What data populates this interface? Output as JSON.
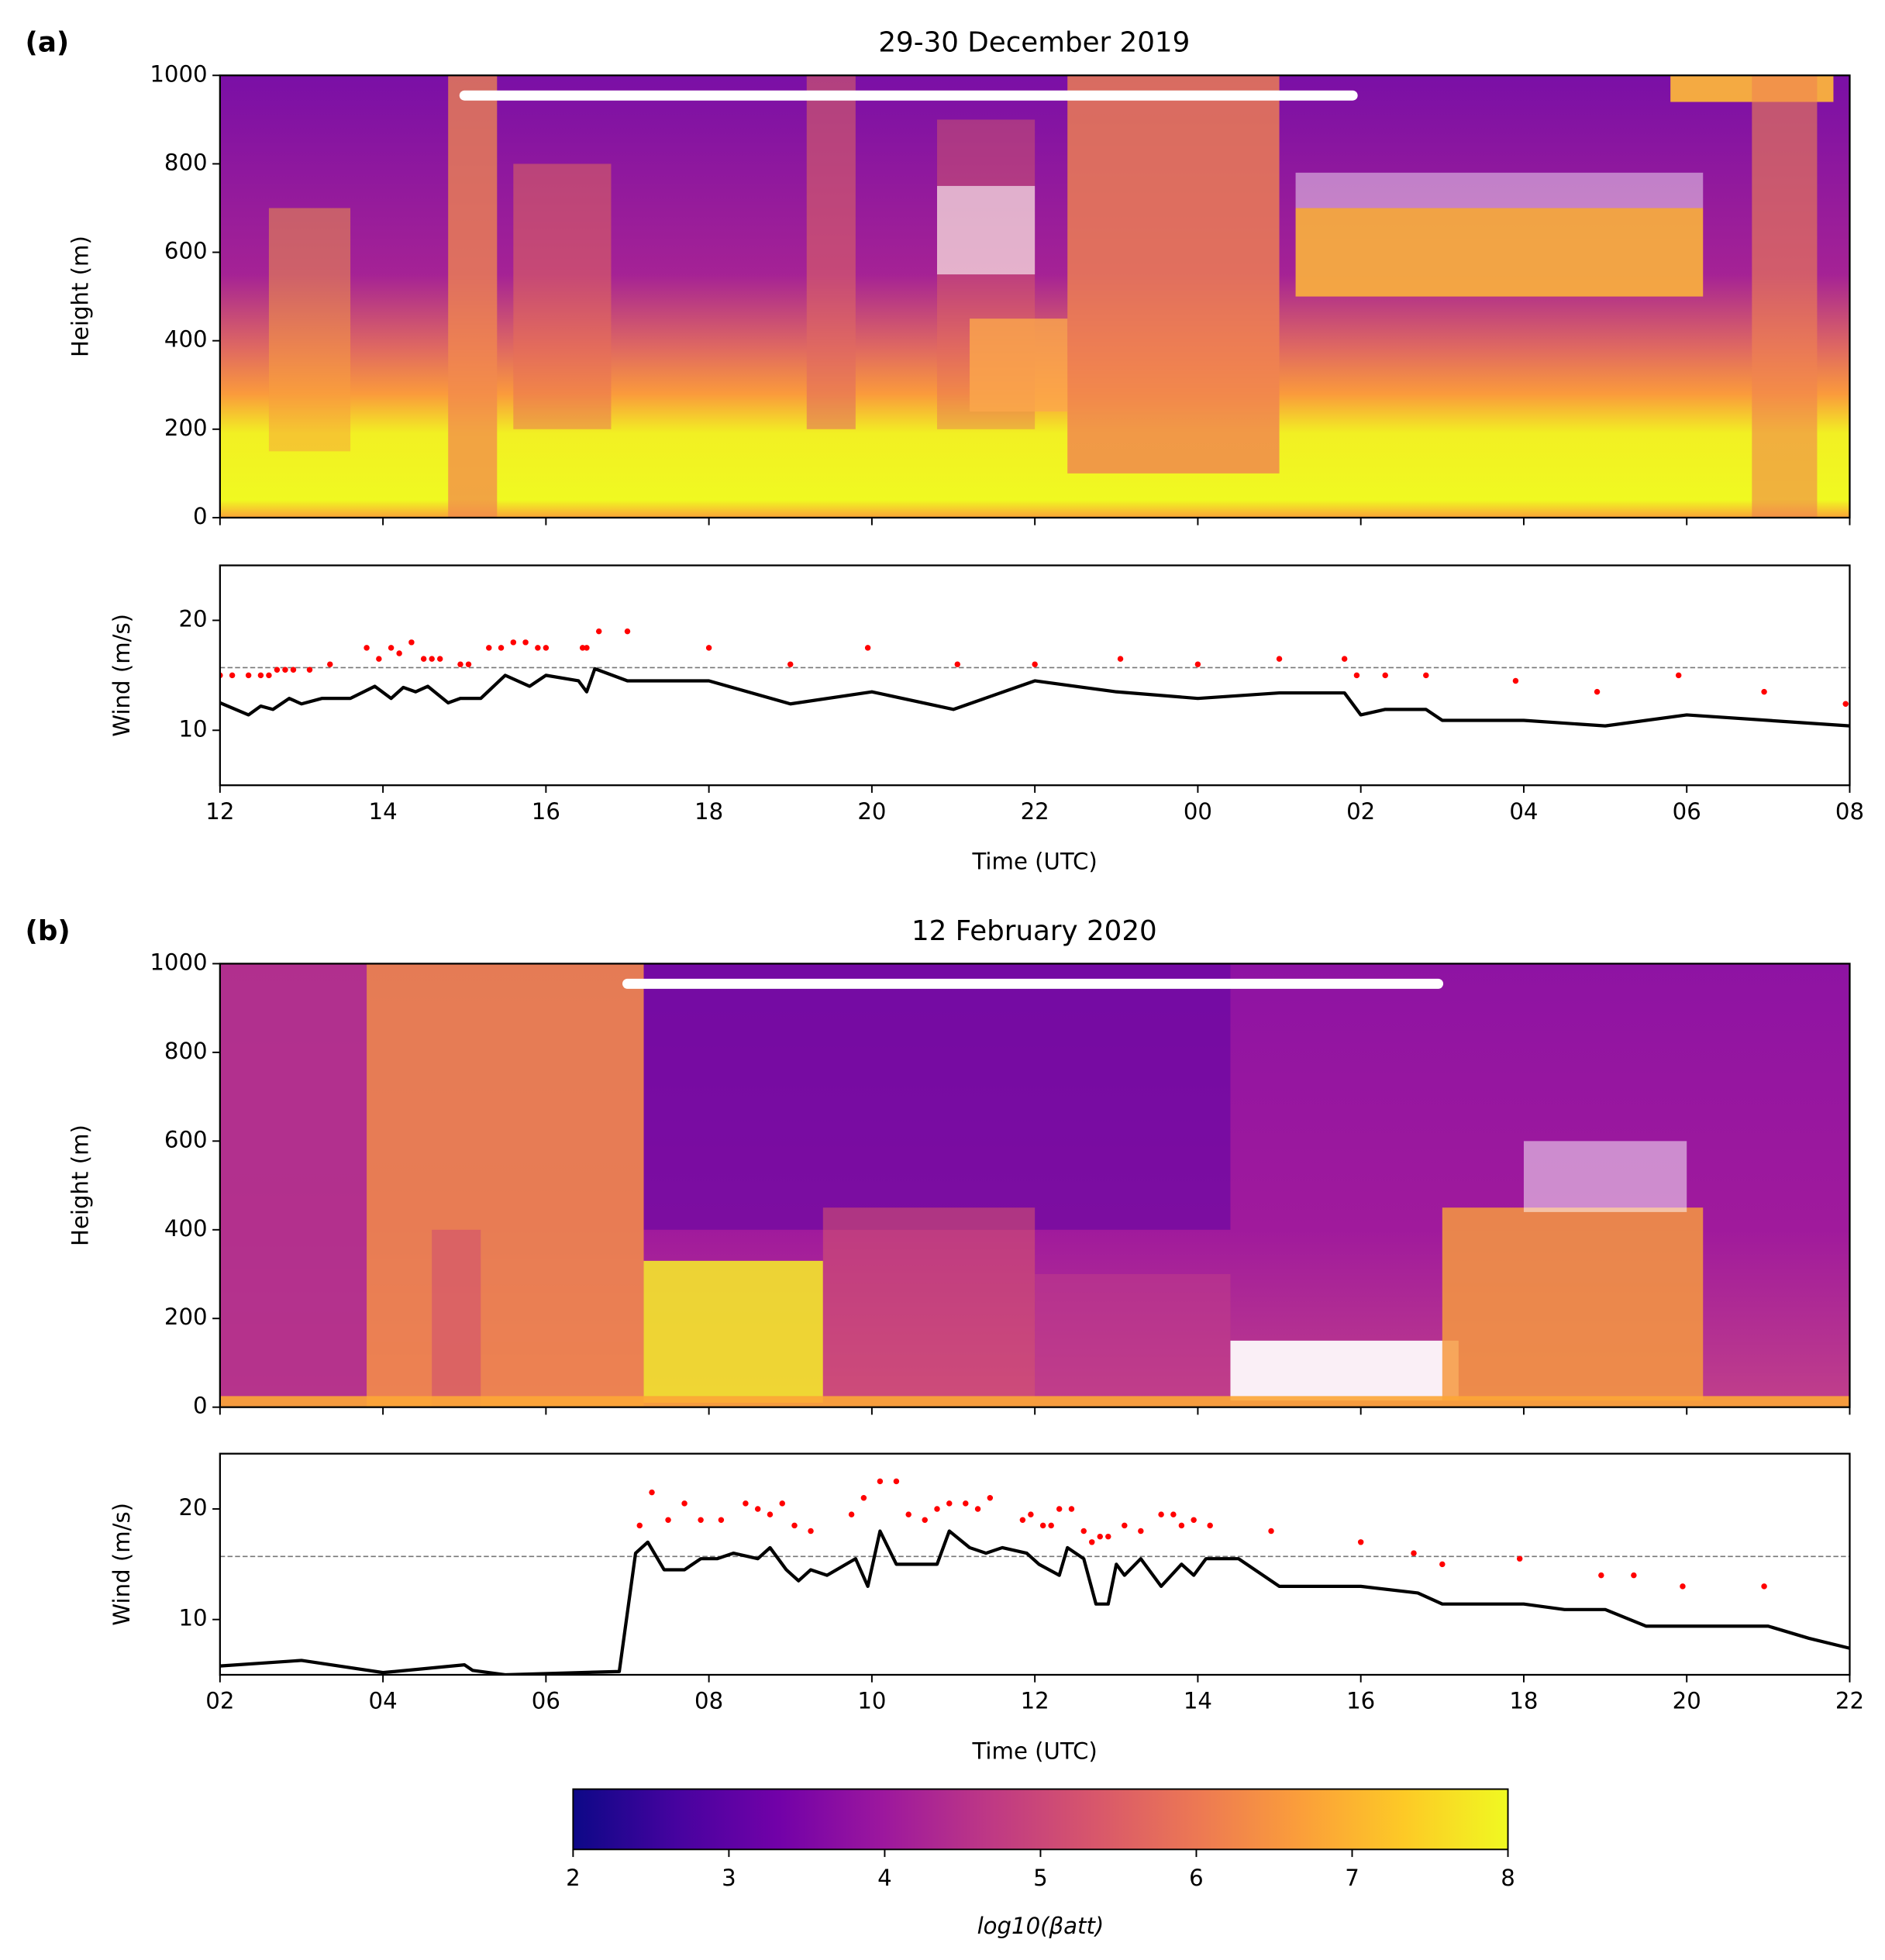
{
  "chart_data": [
    {
      "type": "heatmap",
      "panel": "(a)",
      "title": "29-30 December 2019",
      "ylabel": "Height (m)",
      "ylim": [
        0,
        1000
      ],
      "yticks": [
        0,
        200,
        400,
        600,
        800,
        1000
      ],
      "span": [
        15.0,
        25.9
      ],
      "colormap": "plasma"
    },
    {
      "type": "line",
      "xlabel": "Time (UTC)",
      "ylabel": "Wind (m/s)",
      "xlim": [
        12,
        32
      ],
      "xticks": [
        12,
        14,
        16,
        18,
        20,
        22,
        {
          "value": 24,
          "label": "00"
        },
        {
          "value": 26,
          "label": "02"
        },
        {
          "value": 28,
          "label": "04"
        },
        {
          "value": 30,
          "label": "06"
        },
        {
          "value": 32,
          "label": "08"
        }
      ],
      "ylim": [
        5,
        25
      ],
      "yticks": [
        10,
        20
      ],
      "reference_line": 15.7,
      "series": [
        {
          "style": "line",
          "color": "#000000",
          "x": [
            12.0,
            12.35,
            12.5,
            12.65,
            12.85,
            13.0,
            13.25,
            13.6,
            13.9,
            14.1,
            14.25,
            14.4,
            14.55,
            14.8,
            14.95,
            15.2,
            15.5,
            15.8,
            16.0,
            16.4,
            16.5,
            16.6,
            17.0,
            18.0,
            19.0,
            20.0,
            21.0,
            22.0,
            23.0,
            24.0,
            25.0,
            25.8,
            26.0,
            26.3,
            26.8,
            27.0,
            28.0,
            29.0,
            30.0,
            32.0
          ],
          "values": [
            12.5,
            11.4,
            12.2,
            11.9,
            12.9,
            12.4,
            12.9,
            12.9,
            14.0,
            12.9,
            13.9,
            13.5,
            14.0,
            12.5,
            12.9,
            12.9,
            15.0,
            14.0,
            15.0,
            14.5,
            13.5,
            15.6,
            14.5,
            14.5,
            12.4,
            13.5,
            11.9,
            14.5,
            13.5,
            12.9,
            13.4,
            13.4,
            11.4,
            11.9,
            11.9,
            10.9,
            10.9,
            10.4,
            11.4,
            10.4
          ]
        },
        {
          "style": "scatter",
          "color": "#ff0000",
          "x": [
            12.0,
            12.15,
            12.35,
            12.5,
            12.6,
            12.7,
            12.8,
            12.9,
            13.1,
            13.35,
            13.8,
            13.95,
            14.1,
            14.2,
            14.35,
            14.5,
            14.6,
            14.7,
            14.95,
            15.05,
            15.3,
            15.45,
            15.6,
            15.75,
            15.9,
            16.0,
            16.45,
            16.5,
            16.65,
            17.0,
            18.0,
            19.0,
            19.95,
            21.05,
            22.0,
            23.05,
            24.0,
            25.0,
            25.8,
            25.95,
            26.3,
            26.8,
            27.9,
            28.9,
            29.9,
            30.95,
            31.95
          ],
          "values": [
            15.0,
            15.0,
            15.0,
            15.0,
            15.0,
            15.5,
            15.5,
            15.5,
            15.5,
            16.0,
            17.5,
            16.5,
            17.5,
            17.0,
            18.0,
            16.5,
            16.5,
            16.5,
            16.0,
            16.0,
            17.5,
            17.5,
            18.0,
            18.0,
            17.5,
            17.5,
            17.5,
            17.5,
            19.0,
            19.0,
            17.5,
            16.0,
            17.5,
            16.0,
            16.0,
            16.5,
            16.0,
            16.5,
            16.5,
            15.0,
            15.0,
            15.0,
            14.5,
            13.5,
            15.0,
            13.5,
            12.4
          ]
        }
      ]
    },
    {
      "type": "heatmap",
      "panel": "(b)",
      "title": "12 February 2020",
      "ylabel": "Height (m)",
      "ylim": [
        0,
        1000
      ],
      "yticks": [
        0,
        200,
        400,
        600,
        800,
        1000
      ],
      "span": [
        7.0,
        16.95
      ],
      "colormap": "plasma"
    },
    {
      "type": "line",
      "xlabel": "Time (UTC)",
      "ylabel": "Wind (m/s)",
      "xlim": [
        2,
        22
      ],
      "xticks": [
        {
          "value": 2,
          "label": "02"
        },
        {
          "value": 4,
          "label": "04"
        },
        {
          "value": 6,
          "label": "06"
        },
        {
          "value": 8,
          "label": "08"
        },
        10,
        12,
        14,
        16,
        18,
        20,
        22
      ],
      "ylim": [
        5,
        25
      ],
      "yticks": [
        10,
        20
      ],
      "reference_line": 15.7,
      "series": [
        {
          "style": "line",
          "color": "#000000",
          "x": [
            2,
            3,
            4,
            5,
            5.1,
            5.5,
            6.9,
            7.1,
            7.25,
            7.45,
            7.7,
            7.9,
            8.1,
            8.3,
            8.6,
            8.75,
            8.95,
            9.1,
            9.25,
            9.45,
            9.8,
            9.95,
            10.1,
            10.3,
            10.8,
            10.95,
            11.2,
            11.4,
            11.6,
            11.9,
            12.05,
            12.3,
            12.4,
            12.6,
            12.75,
            12.9,
            13.0,
            13.1,
            13.3,
            13.55,
            13.8,
            13.95,
            14.1,
            14.5,
            15.0,
            16.0,
            16.7,
            17.0,
            18.0,
            18.5,
            19.0,
            19.5,
            21.0,
            21.5,
            22
          ],
          "values": [
            5.8,
            6.3,
            5.2,
            5.9,
            5.4,
            5.0,
            5.3,
            16.0,
            17.0,
            14.5,
            14.5,
            15.5,
            15.5,
            16.0,
            15.5,
            16.5,
            14.5,
            13.5,
            14.5,
            14.0,
            15.5,
            13.0,
            18.0,
            15.0,
            15.0,
            18.0,
            16.5,
            16.0,
            16.5,
            16.0,
            15.0,
            14.0,
            16.5,
            15.5,
            11.4,
            11.4,
            15.0,
            14.0,
            15.5,
            13.0,
            15.0,
            14.0,
            15.5,
            15.5,
            13.0,
            13.0,
            12.4,
            11.4,
            11.4,
            10.9,
            10.9,
            9.4,
            9.4,
            8.3,
            7.4
          ]
        },
        {
          "style": "scatter",
          "color": "#ff0000",
          "x": [
            7.15,
            7.3,
            7.5,
            7.7,
            7.9,
            8.15,
            8.45,
            8.6,
            8.75,
            8.9,
            9.05,
            9.25,
            9.75,
            9.9,
            10.1,
            10.3,
            10.45,
            10.65,
            10.8,
            10.95,
            11.15,
            11.3,
            11.45,
            11.85,
            11.95,
            12.1,
            12.2,
            12.3,
            12.45,
            12.6,
            12.7,
            12.8,
            12.9,
            13.1,
            13.3,
            13.55,
            13.7,
            13.8,
            13.95,
            14.15,
            14.9,
            16.0,
            16.65,
            17.0,
            17.95,
            18.95,
            19.35,
            19.95,
            20.95
          ],
          "values": [
            18.5,
            21.5,
            19.0,
            20.5,
            19.0,
            19.0,
            20.5,
            20.0,
            19.5,
            20.5,
            18.5,
            18.0,
            19.5,
            21.0,
            22.5,
            22.5,
            19.5,
            19.0,
            20.0,
            20.5,
            20.5,
            20.0,
            21.0,
            19.0,
            19.5,
            18.5,
            18.5,
            20.0,
            20.0,
            18.0,
            17.0,
            17.5,
            17.5,
            18.5,
            18.0,
            19.5,
            19.5,
            18.5,
            19.0,
            18.5,
            18.0,
            17.0,
            16.0,
            15.0,
            15.5,
            14.0,
            14.0,
            13.0,
            13.0
          ]
        }
      ]
    },
    {
      "type": "colorbar",
      "label": "log10(βatt)",
      "clim": [
        2,
        8
      ],
      "ticks": [
        2,
        3,
        4,
        5,
        6,
        7,
        8
      ],
      "colormap": "plasma"
    }
  ]
}
